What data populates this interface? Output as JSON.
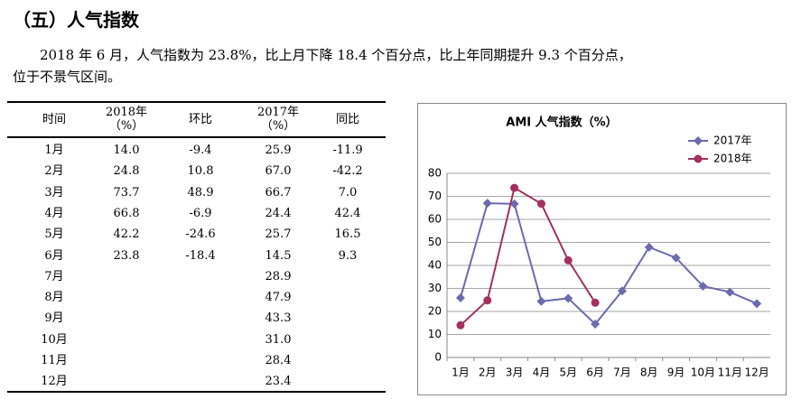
{
  "heading": "（五）人气指数",
  "paragraph": [
    "2018 年 6 月，人气指数为 23.8%，比上月下降 18.4 个百分点，比上年同期提升 9.3 个百分点，",
    "位于不景气区间。"
  ],
  "table": {
    "header": {
      "time": "时间",
      "v2018": "2018年\n（%）",
      "mom": "环比",
      "v2017": "2017年\n（%）",
      "yoy": "同比"
    },
    "rows": [
      {
        "time": "1月",
        "v2018": "14.0",
        "mom": "-9.4",
        "v2017": "25.9",
        "yoy": "-11.9"
      },
      {
        "time": "2月",
        "v2018": "24.8",
        "mom": "10.8",
        "v2017": "67.0",
        "yoy": "-42.2"
      },
      {
        "time": "3月",
        "v2018": "73.7",
        "mom": "48.9",
        "v2017": "66.7",
        "yoy": "7.0"
      },
      {
        "time": "4月",
        "v2018": "66.8",
        "mom": "-6.9",
        "v2017": "24.4",
        "yoy": "42.4"
      },
      {
        "time": "5月",
        "v2018": "42.2",
        "mom": "-24.6",
        "v2017": "25.7",
        "yoy": "16.5"
      },
      {
        "time": "6月",
        "v2018": "23.8",
        "mom": "-18.4",
        "v2017": "14.5",
        "yoy": "9.3"
      },
      {
        "time": "7月",
        "v2017": "28.9"
      },
      {
        "time": "8月",
        "v2017": "47.9"
      },
      {
        "time": "9月",
        "v2017": "43.3"
      },
      {
        "time": "10月",
        "v2017": "31.0"
      },
      {
        "time": "11月",
        "v2017": "28.4"
      },
      {
        "time": "12月",
        "v2017": "23.4"
      }
    ]
  },
  "chart_data": {
    "type": "line",
    "title": "AMI 人气指数（%）",
    "categories": [
      "1月",
      "2月",
      "3月",
      "4月",
      "5月",
      "6月",
      "7月",
      "8月",
      "9月",
      "10月",
      "11月",
      "12月"
    ],
    "series": [
      {
        "name": "2017年",
        "color": "#6b6bae",
        "marker": "diamond",
        "values": [
          25.9,
          67.0,
          66.7,
          24.4,
          25.7,
          14.5,
          28.9,
          47.9,
          43.3,
          31.0,
          28.4,
          23.4
        ]
      },
      {
        "name": "2018年",
        "color": "#a3305e",
        "marker": "circle",
        "values": [
          14.0,
          24.8,
          73.7,
          66.8,
          42.2,
          23.8,
          null,
          null,
          null,
          null,
          null,
          null
        ]
      }
    ],
    "ylim": [
      0,
      80
    ],
    "yticks": [
      0,
      10,
      20,
      30,
      40,
      50,
      60,
      70,
      80
    ],
    "grid": true,
    "legend": "top-right"
  }
}
